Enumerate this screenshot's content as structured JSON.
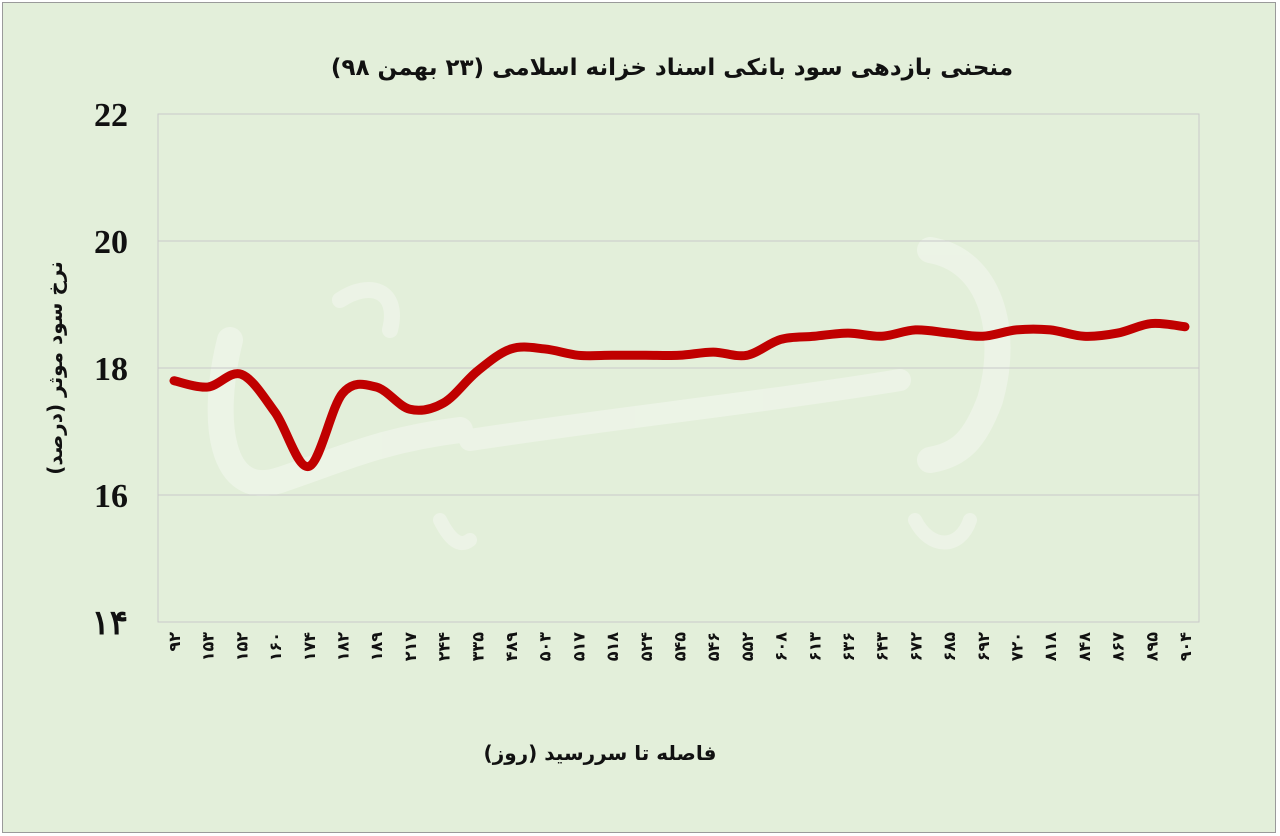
{
  "chart_data": {
    "type": "line",
    "title": "منحنی بازدهی سود بانکی اسناد خزانه اسلامی (۲۳ بهمن ۹۸)",
    "xlabel": "فاصله تا سررسید (روز)",
    "ylabel": "نرخ سود موثر (درصد)",
    "ylim": [
      14,
      22
    ],
    "yticks": [
      {
        "value": 14,
        "label": "۱۴"
      },
      {
        "value": 16,
        "label": "16"
      },
      {
        "value": 18,
        "label": "18"
      },
      {
        "value": 20,
        "label": "20"
      },
      {
        "value": 22,
        "label": "22"
      }
    ],
    "grid": true,
    "line_color": "#c00000",
    "categories": [
      "۹۲",
      "۱۵۳",
      "۱۵۲",
      "۱۶۰",
      "۱۷۴",
      "۱۸۲",
      "۱۸۹",
      "۲۱۷",
      "۲۴۴",
      "۳۳۵",
      "۴۸۹",
      "۵۰۳",
      "۵۱۷",
      "۵۱۸",
      "۵۲۴",
      "۵۴۵",
      "۵۴۶",
      "۵۵۲",
      "۶۰۸",
      "۶۱۳",
      "۶۳۶",
      "۶۴۳",
      "۶۷۲",
      "۶۸۵",
      "۶۹۲",
      "۷۲۰",
      "۸۱۸",
      "۸۴۸",
      "۸۶۷",
      "۸۹۵",
      "۹۰۴"
    ],
    "values": [
      17.8,
      17.7,
      17.9,
      17.3,
      16.45,
      17.6,
      17.7,
      17.35,
      17.45,
      17.95,
      18.3,
      18.3,
      18.2,
      18.2,
      18.2,
      18.2,
      18.25,
      18.2,
      18.45,
      18.5,
      18.55,
      18.5,
      18.6,
      18.55,
      18.5,
      18.6,
      18.6,
      18.5,
      18.55,
      18.7,
      18.65
    ]
  },
  "watermark": "دنیای بورس"
}
